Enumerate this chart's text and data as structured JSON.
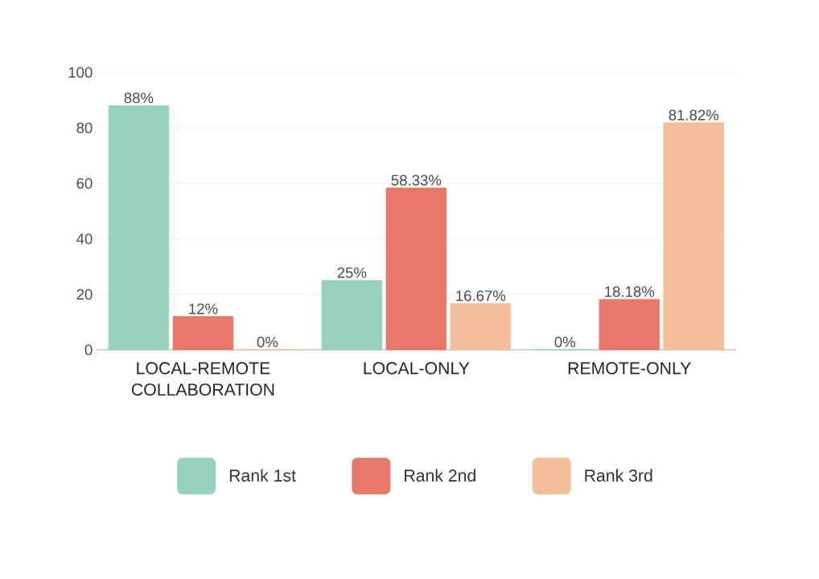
{
  "chart_data": {
    "type": "bar",
    "categories": [
      "LOCAL-REMOTE COLLABORATION",
      "LOCAL-ONLY",
      "REMOTE-ONLY"
    ],
    "series": [
      {
        "name": "Rank 1st",
        "color": "#96d2bd",
        "values": [
          88,
          25,
          0
        ],
        "value_labels": [
          "88%",
          "25%",
          "0%"
        ]
      },
      {
        "name": "Rank 2nd",
        "color": "#e8796a",
        "values": [
          12,
          58.33,
          18.18
        ],
        "value_labels": [
          "12%",
          "58.33%",
          "18.18%"
        ]
      },
      {
        "name": "Rank 3rd",
        "color": "#f2bf9a",
        "values": [
          0,
          16.67,
          81.82
        ],
        "value_labels": [
          "0%",
          "16.67%",
          "81.82%"
        ]
      }
    ],
    "ylim": [
      0,
      100
    ],
    "yticks": [
      0,
      20,
      40,
      60,
      80,
      100
    ],
    "grid": "y",
    "legend": "bottom"
  }
}
